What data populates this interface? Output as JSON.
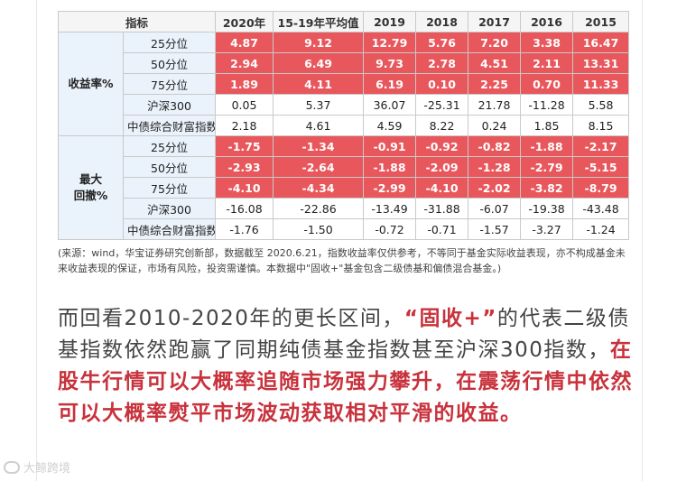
{
  "table": {
    "header": [
      "指标",
      "2020年",
      "15-19年平均值",
      "2019",
      "2018",
      "2017",
      "2016",
      "2015"
    ],
    "groups": [
      {
        "label_lines": [
          "收益率%"
        ],
        "rows": [
          {
            "label": "25分位",
            "values": [
              "4.87",
              "9.12",
              "12.79",
              "5.76",
              "7.20",
              "3.38",
              "16.47"
            ],
            "highlight": true
          },
          {
            "label": "50分位",
            "values": [
              "2.94",
              "6.49",
              "9.73",
              "2.78",
              "4.51",
              "2.11",
              "13.31"
            ],
            "highlight": true
          },
          {
            "label": "75分位",
            "values": [
              "1.89",
              "4.11",
              "6.19",
              "0.10",
              "2.25",
              "0.70",
              "11.33"
            ],
            "highlight": true
          },
          {
            "label": "沪深300",
            "values": [
              "0.05",
              "5.37",
              "36.07",
              "-25.31",
              "21.78",
              "-11.28",
              "5.58"
            ],
            "highlight": false
          },
          {
            "label": "中债综合财富指数",
            "values": [
              "2.18",
              "4.61",
              "4.59",
              "8.22",
              "0.24",
              "1.85",
              "8.15"
            ],
            "highlight": false
          }
        ]
      },
      {
        "label_lines": [
          "最大",
          "回撤%"
        ],
        "rows": [
          {
            "label": "25分位",
            "values": [
              "-1.75",
              "-1.34",
              "-0.91",
              "-0.92",
              "-0.82",
              "-1.88",
              "-2.17"
            ],
            "highlight": true
          },
          {
            "label": "50分位",
            "values": [
              "-2.93",
              "-2.64",
              "-1.88",
              "-2.09",
              "-1.28",
              "-2.79",
              "-5.15"
            ],
            "highlight": true
          },
          {
            "label": "75分位",
            "values": [
              "-4.10",
              "-4.34",
              "-2.99",
              "-4.10",
              "-2.02",
              "-3.82",
              "-8.79"
            ],
            "highlight": true
          },
          {
            "label": "沪深300",
            "values": [
              "-16.08",
              "-22.86",
              "-13.49",
              "-31.88",
              "-6.07",
              "-19.38",
              "-43.48"
            ],
            "highlight": false
          },
          {
            "label": "中债综合财富指数",
            "values": [
              "-1.76",
              "-1.50",
              "-0.72",
              "-0.71",
              "-1.57",
              "-3.27",
              "-1.24"
            ],
            "highlight": false
          }
        ]
      }
    ]
  },
  "note": "(来源：wind，华宝证券研究创新部，数据截至 2020.6.21，指数收益率仅供参考，不等同于基金实际收益表现，亦不构成基金未来收益表现的保证，市场有风险，投资需谨慎。本数据中\"固收+\"基金包含二级债基和偏债混合基金。)",
  "body": {
    "part1": "而回看2010-2020年的更长区间，",
    "part2": "“固收+”",
    "part3": "的代表二级债基指数依然跑赢了同期纯债基金指数甚至沪深300指数，",
    "part4": "在股牛行情可以大概率追随市场强力攀升，在震荡行情中依然可以大概率熨平市场波动获取相对平滑的收益。"
  },
  "watermark": "大鲸跨境"
}
